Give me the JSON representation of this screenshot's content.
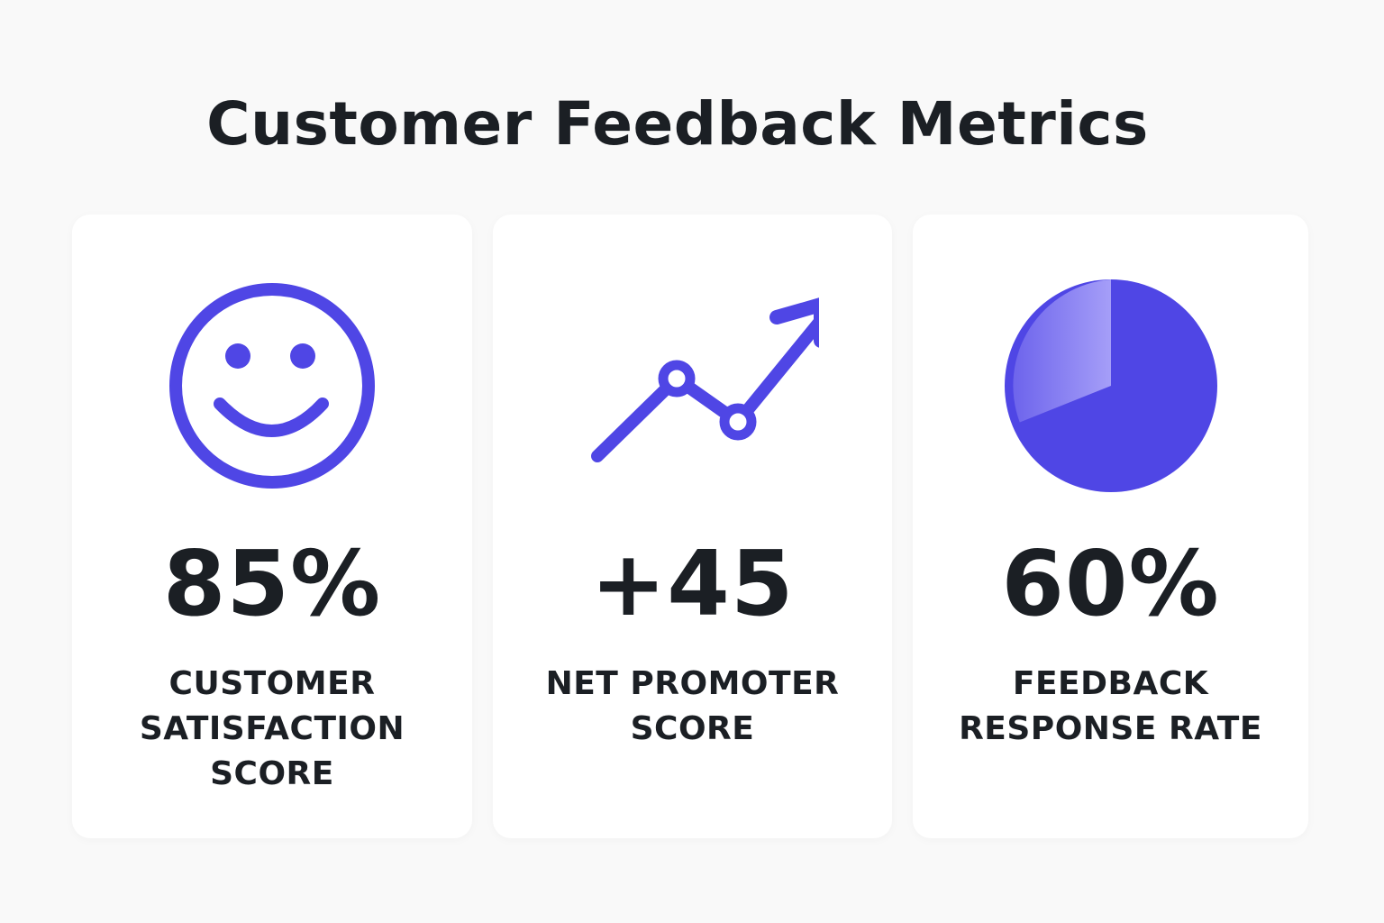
{
  "title": "Customer Feedback Metrics",
  "accent_color": "#4f46e5",
  "metrics": [
    {
      "icon": "smiley-face-icon",
      "value": "85%",
      "label_lines": [
        "CUSTOMER",
        "SATISFACTION",
        "SCORE"
      ]
    },
    {
      "icon": "trend-up-icon",
      "value": "+45",
      "label_lines": [
        "NET PROMOTER",
        "SCORE"
      ]
    },
    {
      "icon": "pie-chart-icon",
      "value": "60%",
      "label_lines": [
        "FEEDBACK",
        "RESPONSE RATE"
      ]
    }
  ]
}
